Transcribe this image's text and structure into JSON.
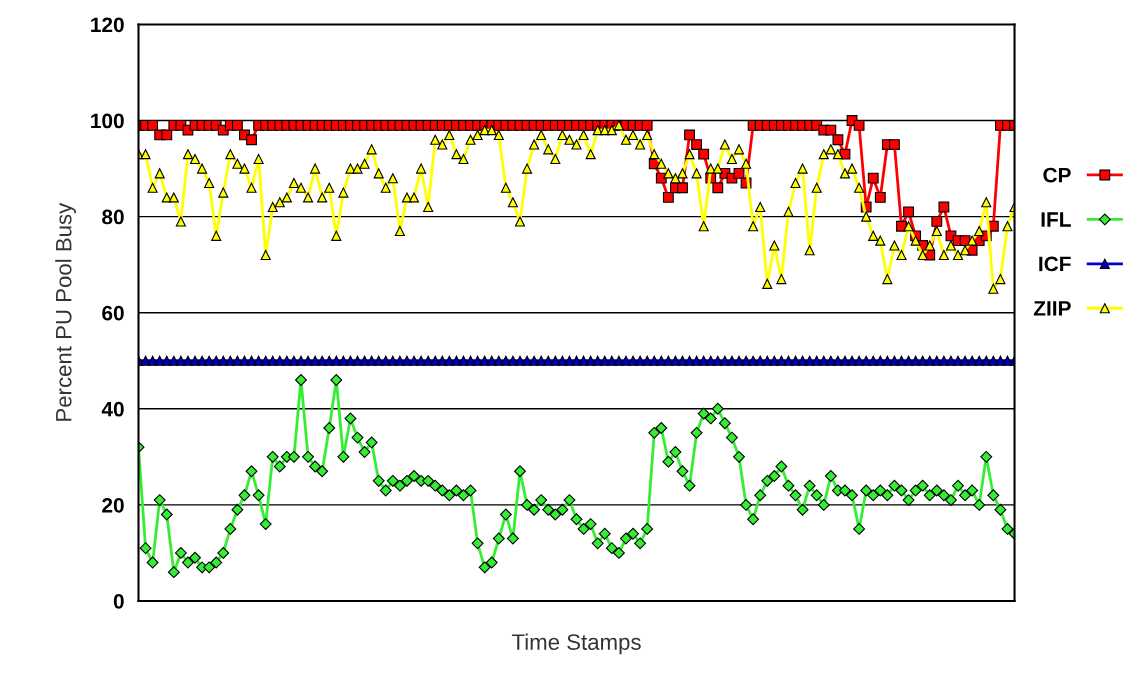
{
  "chart_data": {
    "type": "line",
    "xlabel": "Time Stamps",
    "ylabel": "Percent PU Pool Busy",
    "categories": [
      null,
      null,
      null,
      null,
      null,
      null,
      null,
      null,
      null,
      null,
      null,
      null,
      null,
      null,
      null,
      null,
      null,
      null,
      null,
      null,
      null,
      null,
      null,
      null,
      null,
      null,
      null,
      null,
      null,
      null,
      null,
      null,
      null,
      null,
      null,
      null,
      null,
      null,
      null,
      null,
      null,
      null,
      null,
      null,
      null,
      null,
      null,
      null,
      null,
      null,
      null,
      null,
      null,
      null,
      null,
      null,
      null,
      null,
      null,
      null,
      null,
      null,
      null,
      null,
      null,
      null,
      null,
      null,
      null,
      null,
      null,
      null,
      null,
      null,
      null,
      null,
      null,
      null,
      null,
      null,
      null,
      null,
      null,
      null,
      null,
      null,
      null,
      null,
      null,
      null,
      null,
      null,
      null,
      null,
      null,
      null,
      null,
      null,
      null,
      null,
      null,
      null,
      null,
      null,
      null,
      null,
      null,
      null,
      null,
      null,
      null,
      null,
      null,
      null,
      null,
      null,
      null,
      null,
      null,
      null,
      null,
      null,
      null,
      null,
      null
    ],
    "ylim": [
      0,
      120
    ],
    "yticks": [
      0,
      20,
      40,
      60,
      80,
      100,
      120
    ],
    "grid": "y",
    "legend": "right",
    "series": [
      {
        "name": "CP",
        "color": "#ff0000",
        "marker": "square",
        "values": [
          99,
          99,
          99,
          97,
          97,
          99,
          99,
          98,
          99,
          99,
          99,
          99,
          98,
          99,
          99,
          97,
          96,
          99,
          99,
          99,
          99,
          99,
          99,
          99,
          99,
          99,
          99,
          99,
          99,
          99,
          99,
          99,
          99,
          99,
          99,
          99,
          99,
          99,
          99,
          99,
          99,
          99,
          99,
          99,
          99,
          99,
          99,
          99,
          99,
          99,
          99,
          99,
          99,
          99,
          99,
          99,
          99,
          99,
          99,
          99,
          99,
          99,
          99,
          99,
          99,
          99,
          99,
          99,
          99,
          99,
          99,
          99,
          99,
          91,
          88,
          84,
          86,
          86,
          97,
          95,
          93,
          88,
          86,
          89,
          88,
          89,
          87,
          99,
          99,
          99,
          99,
          99,
          99,
          99,
          99,
          99,
          99,
          98,
          98,
          96,
          93,
          100,
          99,
          82,
          88,
          84,
          95,
          95,
          78,
          81,
          76,
          74,
          72,
          79,
          82,
          76,
          75,
          75,
          73,
          75,
          76,
          78,
          99,
          99,
          99
        ]
      },
      {
        "name": "IFL",
        "color": "#33ee33",
        "marker": "diamond",
        "values": [
          32,
          11,
          8,
          21,
          18,
          6,
          10,
          8,
          9,
          7,
          7,
          8,
          10,
          15,
          19,
          22,
          27,
          22,
          16,
          30,
          28,
          30,
          30,
          46,
          30,
          28,
          27,
          36,
          46,
          30,
          38,
          34,
          31,
          33,
          25,
          23,
          25,
          24,
          25,
          26,
          25,
          25,
          24,
          23,
          22,
          23,
          22,
          23,
          12,
          7,
          8,
          13,
          18,
          13,
          27,
          20,
          19,
          21,
          19,
          18,
          19,
          21,
          17,
          15,
          16,
          12,
          14,
          11,
          10,
          13,
          14,
          12,
          15,
          35,
          36,
          29,
          31,
          27,
          24,
          35,
          39,
          38,
          40,
          37,
          34,
          30,
          20,
          17,
          22,
          25,
          26,
          28,
          24,
          22,
          19,
          24,
          22,
          20,
          26,
          23,
          23,
          22,
          15,
          23,
          22,
          23,
          22,
          24,
          23,
          21,
          23,
          24,
          22,
          23,
          22,
          21,
          24,
          22,
          23,
          20,
          30,
          22,
          19,
          15,
          14
        ]
      },
      {
        "name": "ICF",
        "color": "#0000cc",
        "marker": "triangle",
        "values": [
          50,
          50,
          50,
          50,
          50,
          50,
          50,
          50,
          50,
          50,
          50,
          50,
          50,
          50,
          50,
          50,
          50,
          50,
          50,
          50,
          50,
          50,
          50,
          50,
          50,
          50,
          50,
          50,
          50,
          50,
          50,
          50,
          50,
          50,
          50,
          50,
          50,
          50,
          50,
          50,
          50,
          50,
          50,
          50,
          50,
          50,
          50,
          50,
          50,
          50,
          50,
          50,
          50,
          50,
          50,
          50,
          50,
          50,
          50,
          50,
          50,
          50,
          50,
          50,
          50,
          50,
          50,
          50,
          50,
          50,
          50,
          50,
          50,
          50,
          50,
          50,
          50,
          50,
          50,
          50,
          50,
          50,
          50,
          50,
          50,
          50,
          50,
          50,
          50,
          50,
          50,
          50,
          50,
          50,
          50,
          50,
          50,
          50,
          50,
          50,
          50,
          50,
          50,
          50,
          50,
          50,
          50,
          50,
          50,
          50,
          50,
          50,
          50,
          50,
          50,
          50,
          50,
          50,
          50,
          50,
          50,
          50,
          50,
          50,
          50
        ]
      },
      {
        "name": "ZIIP",
        "color": "#ffff00",
        "marker": "triangle",
        "values": [
          93,
          93,
          86,
          89,
          84,
          84,
          79,
          93,
          92,
          90,
          87,
          76,
          85,
          93,
          91,
          90,
          86,
          92,
          72,
          82,
          83,
          84,
          87,
          86,
          84,
          90,
          84,
          86,
          76,
          85,
          90,
          90,
          91,
          94,
          89,
          86,
          88,
          77,
          84,
          84,
          90,
          82,
          96,
          95,
          97,
          93,
          92,
          96,
          97,
          98,
          98,
          97,
          86,
          83,
          79,
          90,
          95,
          97,
          94,
          92,
          97,
          96,
          95,
          97,
          93,
          98,
          98,
          98,
          99,
          96,
          97,
          95,
          97,
          93,
          91,
          89,
          88,
          89,
          93,
          89,
          78,
          90,
          90,
          95,
          92,
          94,
          91,
          78,
          82,
          66,
          74,
          67,
          81,
          87,
          90,
          73,
          86,
          93,
          94,
          93,
          89,
          90,
          86,
          80,
          76,
          75,
          67,
          74,
          72,
          78,
          75,
          72,
          74,
          77,
          72,
          74,
          72,
          73,
          75,
          77,
          83,
          65,
          67,
          78,
          82
        ]
      }
    ]
  }
}
